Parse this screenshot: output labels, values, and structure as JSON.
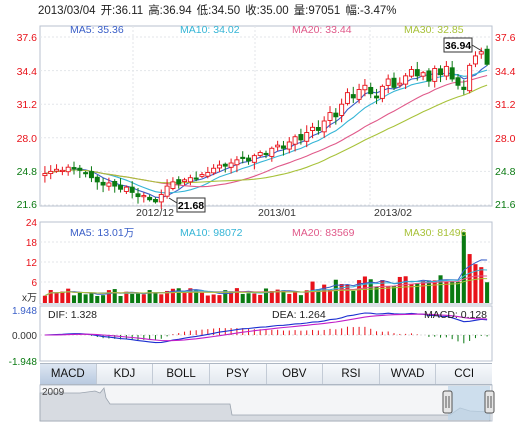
{
  "quote": {
    "date": "2013/03/04",
    "open": "开:36.11",
    "high": "高:36.94",
    "low": "低:34.50",
    "close": "收:35.00",
    "volume": "量:97051",
    "change": "幅:-3.47%"
  },
  "colors": {
    "up": "#e8121a",
    "down": "#0a7a12",
    "ma5": "#3a5fc8",
    "ma10": "#35b5d6",
    "ma20": "#e05a8a",
    "ma30": "#a8c23a"
  },
  "price_panel": {
    "legend": {
      "ma5": "MA5: 35.36",
      "ma10": "MA10: 34.02",
      "ma20": "MA20: 33.44",
      "ma30": "MA30: 32.85"
    },
    "y_ticks": [
      "37.6",
      "34.4",
      "31.2",
      "28.0",
      "24.8",
      "21.6"
    ],
    "x_ticks": [
      "2012/12",
      "2013/01",
      "2013/02"
    ],
    "high_label": "36.94",
    "low_label": "21.68"
  },
  "volume_panel": {
    "legend": {
      "ma5": "MA5: 13.01万",
      "ma10": "MA10: 98072",
      "ma20": "MA20: 83569",
      "ma30": "MA30: 81496"
    },
    "y_ticks": [
      "24",
      "18",
      "12",
      "6"
    ],
    "unit": "x万"
  },
  "macd_panel": {
    "legend": {
      "dif": "DIF: 1.328",
      "dea": "DEA: 1.264",
      "macd": "MACD: 0.128"
    },
    "y_ticks": [
      "1.948",
      "0.000",
      "-1.948"
    ]
  },
  "tabs": [
    "MACD",
    "KDJ",
    "BOLL",
    "PSY",
    "OBV",
    "RSI",
    "WVAD",
    "CCI"
  ],
  "active_tab": "MACD",
  "navigator": {
    "year": "2009"
  },
  "chart_data": {
    "type": "candlestick",
    "y_range": [
      21.6,
      37.6
    ],
    "candles_close": [
      24.6,
      24.8,
      25.0,
      24.9,
      25.2,
      25.1,
      24.9,
      24.6,
      24.2,
      23.8,
      23.5,
      23.7,
      23.4,
      23.1,
      23.3,
      22.8,
      22.4,
      22.5,
      22.1,
      21.9,
      22.6,
      23.4,
      23.8,
      23.6,
      24.0,
      24.2,
      24.1,
      24.5,
      24.7,
      25.1,
      25.4,
      25.3,
      25.6,
      25.9,
      26.1,
      25.8,
      26.3,
      26.6,
      26.4,
      27.0,
      27.3,
      27.0,
      27.6,
      28.1,
      27.8,
      28.5,
      29.0,
      28.7,
      29.6,
      30.4,
      30.0,
      31.2,
      32.3,
      31.8,
      32.6,
      33.0,
      32.2,
      31.8,
      32.9,
      33.6,
      32.8,
      33.2,
      33.9,
      34.5,
      33.9,
      34.2,
      33.4,
      34.6,
      34.0,
      34.8,
      33.6,
      33.0,
      32.6,
      34.9,
      35.8,
      36.2,
      35.0
    ]
  }
}
